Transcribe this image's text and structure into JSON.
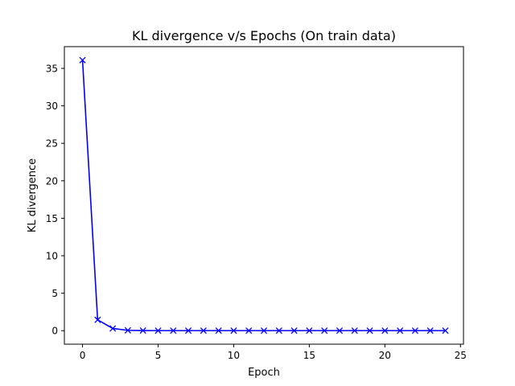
{
  "chart_data": {
    "type": "line",
    "title": "KL divergence v/s Epochs (On train data)",
    "xlabel": "Epoch",
    "ylabel": "KL divergence",
    "x": [
      0,
      1,
      2,
      3,
      4,
      5,
      6,
      7,
      8,
      9,
      10,
      11,
      12,
      13,
      14,
      15,
      16,
      17,
      18,
      19,
      20,
      21,
      22,
      23,
      24
    ],
    "series": [
      {
        "values": [
          36.1,
          1.45,
          0.3,
          0.05,
          0.02,
          0.01,
          0.01,
          0.01,
          0.01,
          0.01,
          0.01,
          0.01,
          0.01,
          0.01,
          0.01,
          0.01,
          0.01,
          0.01,
          0.01,
          0.01,
          0.01,
          0.01,
          0.01,
          0.01,
          0.01
        ],
        "color": "#0000ff",
        "marker": "x"
      }
    ],
    "xlim": [
      -1.2,
      25.2
    ],
    "ylim": [
      -1.8,
      37.9
    ],
    "xticks": [
      0,
      5,
      10,
      15,
      20,
      25
    ],
    "yticks": [
      0,
      5,
      10,
      15,
      20,
      25,
      30,
      35
    ],
    "grid": false
  }
}
